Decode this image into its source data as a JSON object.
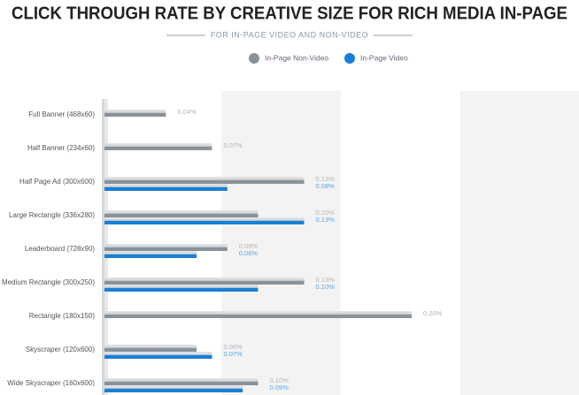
{
  "chart_data": {
    "type": "bar",
    "orientation": "horizontal",
    "title": "CLICK THROUGH RATE BY CREATIVE SIZE FOR RICH MEDIA IN-PAGE",
    "subtitle": "FOR IN-PAGE VIDEO AND NON-VIDEO",
    "categories": [
      "Full Banner (468x60)",
      "Half Banner (234x60)",
      "Half Page Ad (300x600)",
      "Large Rectangle (336x280)",
      "Leaderboard (728x90)",
      "Medium Rectangle (300x250)",
      "Rectangle (180x150)",
      "Skyscraper (120x600)",
      "Wide Skyscraper (160x600)"
    ],
    "series": [
      {
        "name": "In-Page Non-Video",
        "color": "#8a9299",
        "label_color": "#b0b5ba",
        "values": [
          0.04,
          0.07,
          0.13,
          0.1,
          0.08,
          0.13,
          0.2,
          0.06,
          0.1
        ],
        "value_labels": [
          "0.04%",
          "0.07%",
          "0.13%",
          "0.10%",
          "0.08%",
          "0.13%",
          "0.20%",
          "0.06%",
          "0.10%"
        ]
      },
      {
        "name": "In-Page Video",
        "color": "#1a7fd4",
        "label_color": "#5aa6e0",
        "values": [
          null,
          null,
          0.08,
          0.13,
          0.06,
          0.1,
          null,
          0.07,
          0.09
        ],
        "value_labels": [
          null,
          null,
          "0.08%",
          "0.13%",
          "0.06%",
          "0.10%",
          null,
          "0.07%",
          "0.09%"
        ]
      }
    ],
    "xlim": [
      0,
      0.3
    ]
  }
}
